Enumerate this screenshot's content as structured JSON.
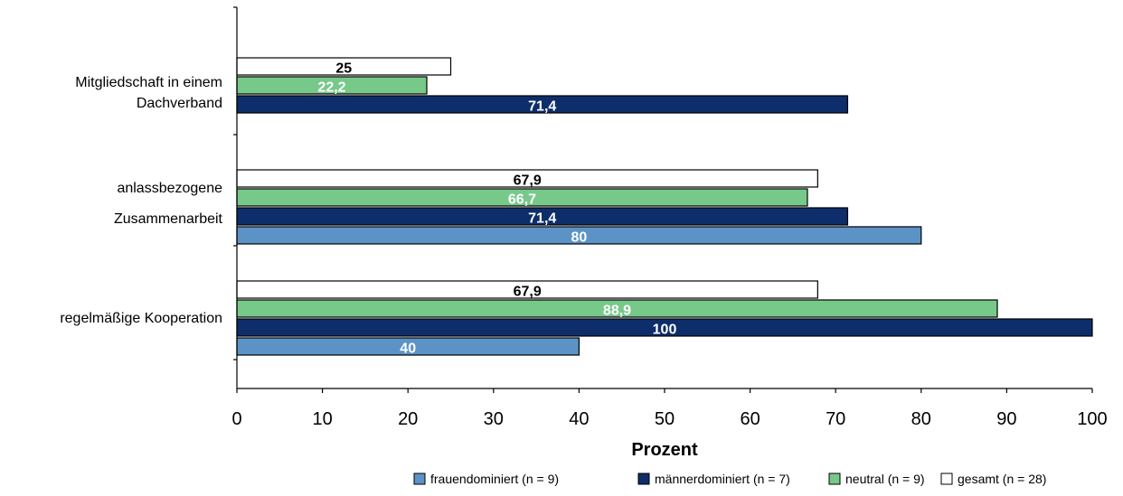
{
  "chart_data": {
    "type": "bar",
    "orientation": "horizontal",
    "title": "",
    "xlabel": "Prozent",
    "ylabel": "",
    "xlim": [
      0,
      100
    ],
    "x_ticks": [
      0,
      10,
      20,
      30,
      40,
      50,
      60,
      70,
      80,
      90,
      100
    ],
    "categories": [
      [
        "Mitgliedschaft in einem",
        "Dachverband"
      ],
      [
        "anlassbezogene",
        "Zusammenarbeit"
      ],
      [
        "regelmäßige Kooperation"
      ]
    ],
    "series": [
      {
        "name": "gesamt (n = 28)",
        "color": "#ffffff",
        "label_color": "#000000",
        "values": [
          25,
          67.9,
          67.9
        ]
      },
      {
        "name": "neutral (n = 9)",
        "color": "#77c98a",
        "label_color": "#ffffff",
        "values": [
          22.2,
          66.7,
          88.9
        ]
      },
      {
        "name": "männerdominiert (n = 7)",
        "color": "#0d2d6b",
        "label_color": "#ffffff",
        "values": [
          71.4,
          71.4,
          100
        ]
      },
      {
        "name": "frauendominiert (n = 9)",
        "color": "#5b93c6",
        "label_color": "#ffffff",
        "values": [
          null,
          80,
          40
        ]
      }
    ],
    "legend_order": [
      "frauendominiert (n = 9)",
      "männerdominiert (n = 7)",
      "neutral (n = 9)",
      "gesamt (n = 28)"
    ],
    "legend_position": "bottom-right",
    "grid": false
  }
}
